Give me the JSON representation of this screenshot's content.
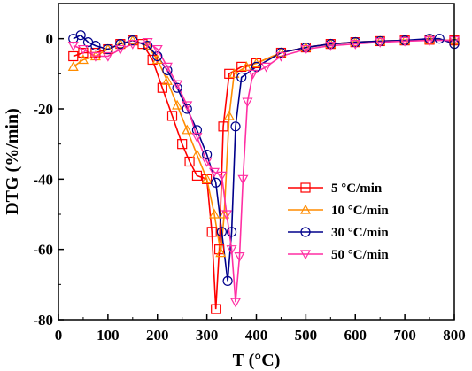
{
  "chart_data": {
    "type": "line",
    "xlabel": "T (°C)",
    "ylabel": "DTG (%/min)",
    "xlim": [
      0,
      800
    ],
    "ylim": [
      -80,
      10
    ],
    "x_ticks": [
      0,
      100,
      200,
      300,
      400,
      500,
      600,
      700,
      800
    ],
    "y_ticks": [
      0,
      -20,
      -40,
      -60,
      -80
    ],
    "grid": false,
    "legend_position": "right-middle",
    "series": [
      {
        "name": "5 °C/min",
        "color": "#ff0000",
        "marker": "square",
        "points": [
          [
            30,
            -5
          ],
          [
            50,
            -4
          ],
          [
            75,
            -4
          ],
          [
            100,
            -3
          ],
          [
            125,
            -1.5
          ],
          [
            150,
            -0.5
          ],
          [
            170,
            -1.5
          ],
          [
            190,
            -6
          ],
          [
            210,
            -14
          ],
          [
            230,
            -22
          ],
          [
            250,
            -30
          ],
          [
            265,
            -35
          ],
          [
            280,
            -39
          ],
          [
            300,
            -40
          ],
          [
            310,
            -55
          ],
          [
            318,
            -77
          ],
          [
            325,
            -60
          ],
          [
            333,
            -25
          ],
          [
            345,
            -10
          ],
          [
            370,
            -8
          ],
          [
            400,
            -7
          ],
          [
            450,
            -4
          ],
          [
            500,
            -2.5
          ],
          [
            550,
            -1.5
          ],
          [
            600,
            -1
          ],
          [
            650,
            -0.7
          ],
          [
            700,
            -0.5
          ],
          [
            750,
            -0.3
          ],
          [
            800,
            -0.5
          ]
        ]
      },
      {
        "name": "10 °C/min",
        "color": "#ff8c00",
        "marker": "triangle-up",
        "points": [
          [
            30,
            -8
          ],
          [
            50,
            -6
          ],
          [
            75,
            -5
          ],
          [
            100,
            -3
          ],
          [
            125,
            -1.5
          ],
          [
            150,
            -0.5
          ],
          [
            180,
            -2
          ],
          [
            200,
            -6
          ],
          [
            220,
            -12
          ],
          [
            240,
            -19
          ],
          [
            260,
            -26
          ],
          [
            280,
            -33
          ],
          [
            300,
            -40
          ],
          [
            315,
            -50
          ],
          [
            328,
            -61
          ],
          [
            335,
            -50
          ],
          [
            345,
            -22
          ],
          [
            355,
            -10
          ],
          [
            380,
            -8
          ],
          [
            400,
            -7
          ],
          [
            450,
            -4
          ],
          [
            500,
            -2.5
          ],
          [
            550,
            -1.5
          ],
          [
            600,
            -1
          ],
          [
            650,
            -0.7
          ],
          [
            700,
            -0.5
          ],
          [
            750,
            -0.3
          ],
          [
            800,
            -0.5
          ]
        ]
      },
      {
        "name": "30 °C/min",
        "color": "#00008b",
        "marker": "circle",
        "points": [
          [
            30,
            0
          ],
          [
            45,
            1
          ],
          [
            60,
            -1
          ],
          [
            75,
            -2
          ],
          [
            100,
            -3
          ],
          [
            125,
            -1.5
          ],
          [
            150,
            -0.5
          ],
          [
            180,
            -2
          ],
          [
            200,
            -5
          ],
          [
            220,
            -9
          ],
          [
            240,
            -14
          ],
          [
            260,
            -20
          ],
          [
            280,
            -26
          ],
          [
            300,
            -33
          ],
          [
            318,
            -41
          ],
          [
            330,
            -55
          ],
          [
            342,
            -69
          ],
          [
            350,
            -55
          ],
          [
            358,
            -25
          ],
          [
            370,
            -11
          ],
          [
            400,
            -8
          ],
          [
            450,
            -4
          ],
          [
            500,
            -2.5
          ],
          [
            550,
            -1.5
          ],
          [
            600,
            -1
          ],
          [
            650,
            -0.7
          ],
          [
            700,
            -0.5
          ],
          [
            750,
            0
          ],
          [
            770,
            0
          ],
          [
            800,
            -1.5
          ]
        ]
      },
      {
        "name": "50 °C/min",
        "color": "#ff2fa3",
        "marker": "triangle-down",
        "points": [
          [
            30,
            -2
          ],
          [
            50,
            -3
          ],
          [
            75,
            -5
          ],
          [
            100,
            -5
          ],
          [
            125,
            -3
          ],
          [
            150,
            -1.5
          ],
          [
            180,
            -1
          ],
          [
            200,
            -3
          ],
          [
            220,
            -8
          ],
          [
            240,
            -13
          ],
          [
            260,
            -19
          ],
          [
            280,
            -28
          ],
          [
            300,
            -35
          ],
          [
            315,
            -38
          ],
          [
            330,
            -39
          ],
          [
            340,
            -50
          ],
          [
            350,
            -60
          ],
          [
            358,
            -75
          ],
          [
            366,
            -62
          ],
          [
            373,
            -40
          ],
          [
            382,
            -18
          ],
          [
            393,
            -10
          ],
          [
            420,
            -8
          ],
          [
            450,
            -5
          ],
          [
            500,
            -3
          ],
          [
            550,
            -2
          ],
          [
            600,
            -1.5
          ],
          [
            650,
            -1
          ],
          [
            700,
            -0.7
          ],
          [
            750,
            -0.5
          ],
          [
            800,
            -0.5
          ]
        ]
      }
    ]
  }
}
